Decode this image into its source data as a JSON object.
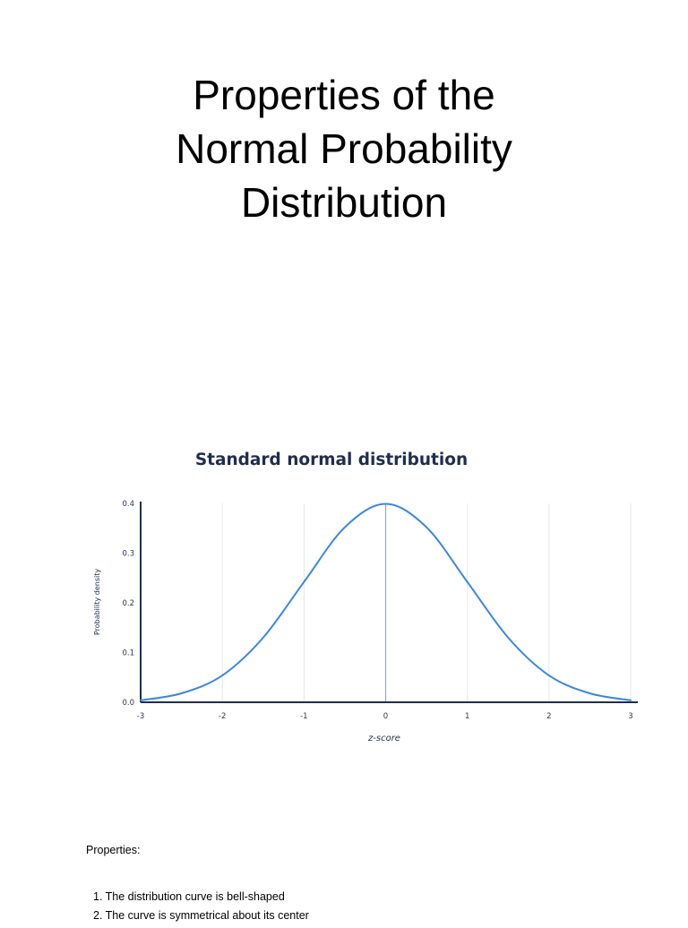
{
  "document": {
    "title_lines": [
      "Properties of the",
      "Normal Probability",
      "Distribution"
    ],
    "properties_heading": "Properties:",
    "properties": [
      "1. The distribution curve is bell-shaped",
      "2. The curve is symmetrical about its center"
    ]
  },
  "chart_data": {
    "type": "line",
    "title": "Standard normal distribution",
    "xlabel": "z-score",
    "ylabel": "Probability density",
    "xlim": [
      -3,
      3
    ],
    "ylim": [
      0,
      0.4
    ],
    "x_ticks": [
      -3,
      -2,
      -1,
      0,
      1,
      2,
      3
    ],
    "x_tick_labels": [
      "-3",
      "-2",
      "-1",
      "0",
      "1",
      "2",
      "3"
    ],
    "y_ticks": [
      0.0,
      0.1,
      0.2,
      0.3,
      0.4
    ],
    "y_tick_labels": [
      "0.0",
      "0.1",
      "0.2",
      "0.3",
      "0.4"
    ],
    "grid": "vertical",
    "mean_line_x": 0,
    "series": [
      {
        "x": [
          -3,
          -2.5,
          -2,
          -1.5,
          -1,
          -0.5,
          0,
          0.5,
          1,
          1.5,
          2,
          2.5,
          3
        ],
        "values": [
          0.004,
          0.018,
          0.054,
          0.13,
          0.242,
          0.352,
          0.399,
          0.352,
          0.242,
          0.13,
          0.054,
          0.018,
          0.004
        ]
      }
    ],
    "colors": {
      "curve": "#3a87e0",
      "title": "#1f2d4f",
      "axis": "#1f2d4f",
      "grid": "#e4e6ea",
      "mean_line": "#9aa6bd",
      "tick_label": "#2a3550"
    }
  }
}
